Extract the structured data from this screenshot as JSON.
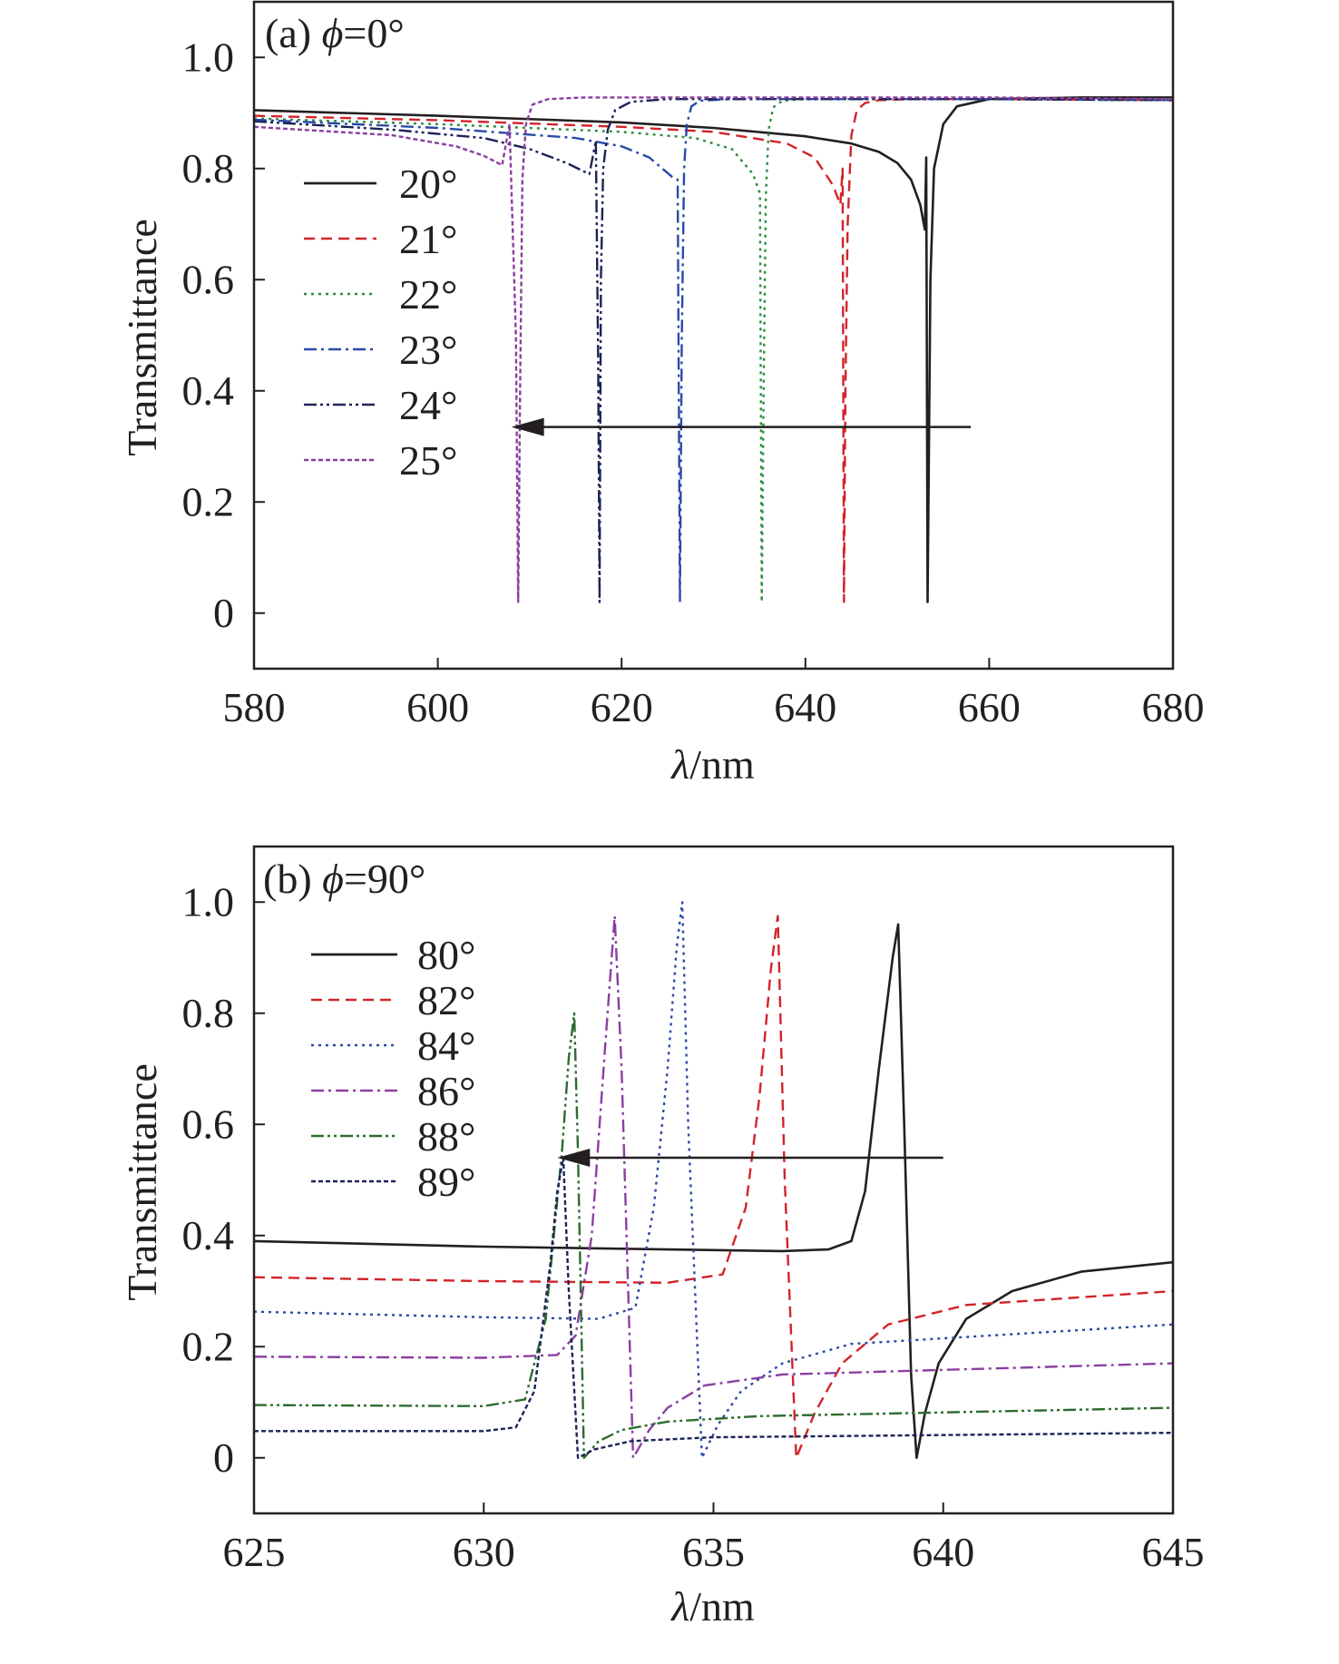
{
  "chart_data": [
    {
      "type": "line",
      "panel": "a",
      "title": "(a) ϕ=0°",
      "panel_prefix": "(a) ",
      "panel_symbol": "ϕ",
      "panel_suffix": "=0°",
      "xlabel": "λ/nm",
      "xlabel_symbol": "λ",
      "xlabel_unit": "/nm",
      "ylabel": "Transmittance",
      "xlim": [
        580,
        680
      ],
      "ylim": [
        -0.1,
        1.1
      ],
      "xticks": [
        580,
        600,
        620,
        640,
        660,
        680
      ],
      "yticks": [
        0,
        0.2,
        0.4,
        0.6,
        0.8,
        1.0
      ],
      "ytick_labels": [
        "0",
        "0.2",
        "0.4",
        "0.6",
        "0.8",
        "1.0"
      ],
      "legend": [
        "20°",
        "21°",
        "22°",
        "23°",
        "24°",
        "25°"
      ],
      "arrow": {
        "from": [
          658,
          0.335
        ],
        "to": [
          608,
          0.335
        ]
      },
      "series": [
        {
          "name": "20°",
          "color": "#231f20",
          "dash": "",
          "resonance_nm": 653.2,
          "x": [
            580,
            600,
            620,
            630,
            640,
            645,
            648,
            650,
            651.5,
            652.5,
            653.0,
            653.15,
            653.3,
            653.45,
            653.6,
            654.0,
            655.0,
            656.5,
            660,
            670,
            680
          ],
          "y": [
            0.905,
            0.895,
            0.883,
            0.873,
            0.858,
            0.845,
            0.83,
            0.81,
            0.78,
            0.735,
            0.69,
            0.82,
            0.02,
            0.3,
            0.6,
            0.8,
            0.88,
            0.912,
            0.925,
            0.928,
            0.928
          ]
        },
        {
          "name": "21°",
          "color": "#d2232a",
          "dash": "12,7",
          "resonance_nm": 644.2,
          "x": [
            580,
            600,
            620,
            630,
            638,
            641,
            643,
            643.8,
            644.05,
            644.2,
            644.35,
            644.6,
            645.0,
            645.6,
            646.5,
            648,
            652,
            660,
            680
          ],
          "y": [
            0.895,
            0.887,
            0.875,
            0.866,
            0.845,
            0.82,
            0.77,
            0.735,
            0.8,
            0.02,
            0.4,
            0.7,
            0.86,
            0.905,
            0.918,
            0.923,
            0.925,
            0.925,
            0.923
          ]
        },
        {
          "name": "22°",
          "color": "#2e8b3f",
          "dash": "3,5",
          "resonance_nm": 635.3,
          "x": [
            580,
            600,
            620,
            628,
            632,
            634.3,
            635.05,
            635.25,
            635.45,
            635.7,
            636.0,
            636.5,
            637.5,
            640,
            660,
            680
          ],
          "y": [
            0.89,
            0.88,
            0.866,
            0.855,
            0.835,
            0.79,
            0.755,
            0.02,
            0.4,
            0.75,
            0.87,
            0.91,
            0.922,
            0.925,
            0.925,
            0.923
          ]
        },
        {
          "name": "23°",
          "color": "#2a4aa8",
          "dash": "14,5,3,5",
          "resonance_nm": 626.4,
          "x": [
            580,
            600,
            615,
            620,
            623,
            625.5,
            626.1,
            626.35,
            626.55,
            626.8,
            627.1,
            627.6,
            628.5,
            632,
            660,
            680
          ],
          "y": [
            0.888,
            0.873,
            0.855,
            0.84,
            0.82,
            0.785,
            0.78,
            0.02,
            0.5,
            0.8,
            0.88,
            0.912,
            0.922,
            0.925,
            0.925,
            0.923
          ]
        },
        {
          "name": "24°",
          "color": "#1c2358",
          "dash": "14,4,3,4,3,4",
          "resonance_nm": 617.6,
          "x": [
            580,
            595,
            605,
            610,
            614,
            616.5,
            617.2,
            617.45,
            617.6,
            617.75,
            618.0,
            618.5,
            619.3,
            621,
            625,
            660,
            680
          ],
          "y": [
            0.885,
            0.87,
            0.855,
            0.835,
            0.81,
            0.79,
            0.85,
            0.45,
            0.02,
            0.6,
            0.8,
            0.87,
            0.905,
            0.92,
            0.925,
            0.925,
            0.923
          ]
        },
        {
          "name": "25°",
          "color": "#8a3fa0",
          "dash": "5,3",
          "resonance_nm": 608.7,
          "x": [
            580,
            595,
            602,
            605,
            607,
            607.8,
            608.5,
            608.75,
            608.95,
            609.2,
            609.6,
            610.3,
            612,
            616,
            660,
            680
          ],
          "y": [
            0.875,
            0.86,
            0.84,
            0.823,
            0.806,
            0.88,
            0.5,
            0.02,
            0.4,
            0.78,
            0.88,
            0.915,
            0.925,
            0.928,
            0.928,
            0.925
          ]
        }
      ]
    },
    {
      "type": "line",
      "panel": "b",
      "title": "(b) ϕ=90°",
      "panel_prefix": "(b) ",
      "panel_symbol": "ϕ",
      "panel_suffix": "=90°",
      "xlabel": "λ/nm",
      "xlabel_symbol": "λ",
      "xlabel_unit": "/nm",
      "ylabel": "Transmittance",
      "xlim": [
        625,
        645
      ],
      "ylim": [
        -0.1,
        1.1
      ],
      "xticks": [
        625,
        630,
        635,
        640,
        645
      ],
      "yticks": [
        0,
        0.2,
        0.4,
        0.6,
        0.8,
        1.0
      ],
      "ytick_labels": [
        "0",
        "0.2",
        "0.4",
        "0.6",
        "0.8",
        "1.0"
      ],
      "legend": [
        "80°",
        "82°",
        "84°",
        "86°",
        "88°",
        "89°"
      ],
      "arrow": {
        "from": [
          640,
          0.54
        ],
        "to": [
          631.6,
          0.54
        ]
      },
      "series": [
        {
          "name": "80°",
          "color": "#231f20",
          "dash": "",
          "x": [
            625,
            630,
            634,
            636.5,
            637.5,
            638.0,
            638.3,
            638.6,
            638.9,
            639.02,
            639.15,
            639.3,
            639.42,
            639.6,
            639.9,
            640.5,
            641.5,
            643,
            645
          ],
          "y": [
            0.39,
            0.38,
            0.375,
            0.372,
            0.375,
            0.39,
            0.48,
            0.7,
            0.9,
            0.96,
            0.6,
            0.15,
            0.0,
            0.08,
            0.17,
            0.25,
            0.3,
            0.335,
            0.352
          ]
        },
        {
          "name": "82°",
          "color": "#d2232a",
          "dash": "12,7",
          "resonance_nm": 636.5,
          "x": [
            625,
            630,
            634,
            635.2,
            635.7,
            636.0,
            636.25,
            636.4,
            636.55,
            636.8,
            637.2,
            637.8,
            638.8,
            640.5,
            645
          ],
          "y": [
            0.325,
            0.318,
            0.315,
            0.33,
            0.45,
            0.65,
            0.88,
            0.975,
            0.5,
            0.0,
            0.08,
            0.17,
            0.24,
            0.275,
            0.3
          ]
        },
        {
          "name": "84°",
          "color": "#2a4aa8",
          "dash": "3,5",
          "resonance_nm": 634.3,
          "x": [
            625,
            630,
            632.5,
            633.3,
            633.7,
            634.0,
            634.2,
            634.32,
            634.45,
            634.75,
            635.1,
            635.6,
            636.5,
            638,
            645
          ],
          "y": [
            0.263,
            0.253,
            0.25,
            0.27,
            0.45,
            0.7,
            0.92,
            1.0,
            0.6,
            0.0,
            0.06,
            0.12,
            0.17,
            0.205,
            0.24
          ]
        },
        {
          "name": "86°",
          "color": "#8a3fa0",
          "dash": "14,5,3,5",
          "resonance_nm": 632.9,
          "x": [
            625,
            630,
            631.6,
            632.0,
            632.35,
            632.65,
            632.85,
            633.0,
            633.25,
            633.6,
            634.0,
            634.8,
            636.5,
            645
          ],
          "y": [
            0.182,
            0.18,
            0.185,
            0.22,
            0.4,
            0.75,
            0.975,
            0.7,
            0.0,
            0.05,
            0.09,
            0.13,
            0.15,
            0.17
          ]
        },
        {
          "name": "88°",
          "color": "#2e6b2f",
          "dash": "14,4,3,4,3,4",
          "resonance_nm": 631.95,
          "x": [
            625,
            630,
            630.9,
            631.35,
            631.7,
            631.85,
            631.97,
            632.05,
            632.18,
            632.5,
            633.0,
            634.0,
            636,
            645
          ],
          "y": [
            0.095,
            0.093,
            0.105,
            0.25,
            0.55,
            0.72,
            0.8,
            0.55,
            0.0,
            0.03,
            0.05,
            0.065,
            0.075,
            0.09
          ]
        },
        {
          "name": "89°",
          "color": "#1c2358",
          "dash": "5,3",
          "resonance_nm": 631.8,
          "x": [
            625,
            630,
            630.7,
            631.1,
            631.45,
            631.6,
            631.73,
            631.85,
            632.05,
            632.4,
            633.2,
            635,
            645
          ],
          "y": [
            0.048,
            0.048,
            0.055,
            0.12,
            0.35,
            0.48,
            0.54,
            0.3,
            0.0,
            0.015,
            0.03,
            0.037,
            0.045
          ]
        }
      ]
    }
  ]
}
